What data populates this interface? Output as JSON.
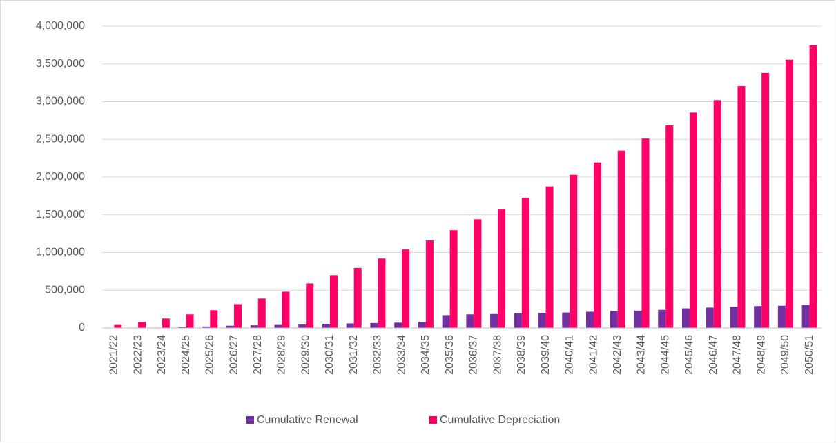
{
  "chart_data": {
    "type": "bar",
    "categories": [
      "2021/22",
      "2022/23",
      "2023/24",
      "2024/25",
      "2025/26",
      "2026/27",
      "2027/28",
      "2028/29",
      "2029/30",
      "2030/31",
      "2031/32",
      "2032/33",
      "2033/34",
      "2034/35",
      "2035/36",
      "2036/37",
      "2037/38",
      "2038/39",
      "2039/40",
      "2040/41",
      "2041/42",
      "2042/43",
      "2043/44",
      "2044/45",
      "2045/46",
      "2046/47",
      "2047/48",
      "2048/49",
      "2049/50",
      "2050/51"
    ],
    "series": [
      {
        "name": "Cumulative Renewal",
        "color": "#7030a0",
        "values": [
          0,
          2000,
          5000,
          10000,
          20000,
          30000,
          35000,
          40000,
          45000,
          55000,
          60000,
          65000,
          70000,
          80000,
          170000,
          180000,
          185000,
          195000,
          200000,
          205000,
          215000,
          225000,
          230000,
          240000,
          260000,
          270000,
          280000,
          290000,
          295000,
          305000
        ]
      },
      {
        "name": "Cumulative Depreciation",
        "color": "#ff0066",
        "values": [
          40000,
          80000,
          125000,
          180000,
          235000,
          315000,
          390000,
          480000,
          590000,
          700000,
          795000,
          920000,
          1040000,
          1160000,
          1295000,
          1440000,
          1570000,
          1725000,
          1875000,
          2030000,
          2195000,
          2350000,
          2510000,
          2685000,
          2855000,
          3020000,
          3205000,
          3380000,
          3555000,
          3745000
        ]
      }
    ],
    "ylim": [
      0,
      4000000
    ],
    "yticks": [
      0,
      {
        "value": 500000,
        "label": "500,000"
      },
      {
        "value": 1000000,
        "label": "1,000,000"
      },
      {
        "value": 1500000,
        "label": "1,500,000"
      },
      {
        "value": 2000000,
        "label": "2,000,000"
      },
      {
        "value": 2500000,
        "label": "2,500,000"
      },
      {
        "value": 3000000,
        "label": "3,000,000"
      },
      {
        "value": 3500000,
        "label": "3,500,000"
      },
      {
        "value": 4000000,
        "label": "4,000,000"
      }
    ],
    "grid": true,
    "legend": "bottom"
  }
}
